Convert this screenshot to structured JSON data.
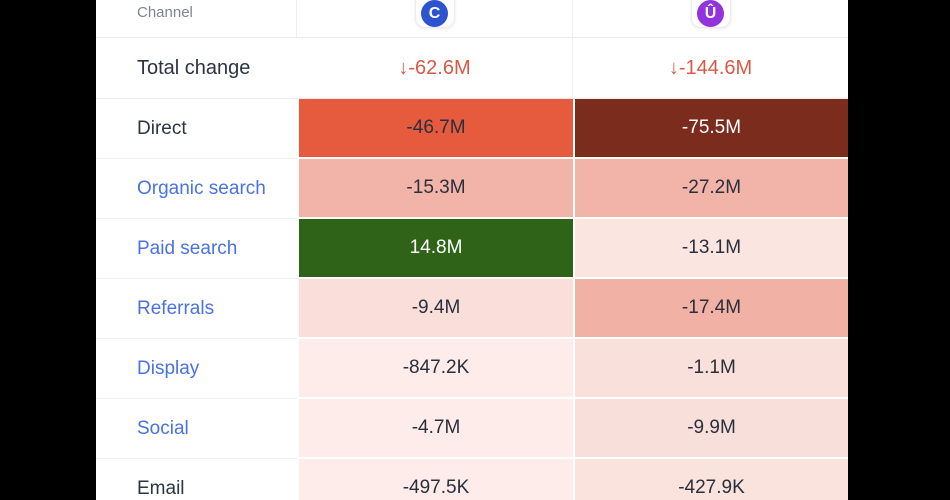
{
  "page": {
    "letterbox_color": "#000000",
    "table_background": "#ffffff"
  },
  "table": {
    "header": {
      "channel_label": "Channel",
      "brands": [
        {
          "icon": "brand-c-icon",
          "glyph": "C",
          "circle_color": "#2d53cf"
        },
        {
          "icon": "brand-u-icon",
          "glyph": "Û",
          "circle_color": "#9233dd"
        }
      ]
    },
    "total_row": {
      "label": "Total change",
      "text_color": "#d85a46",
      "values": [
        {
          "text": "↓-62.6M"
        },
        {
          "text": "↓-144.6M"
        }
      ]
    },
    "rows": [
      {
        "label": "Direct",
        "label_color": "#2d3442",
        "cells": [
          {
            "text": "-46.7M",
            "bg": "#e65b3e",
            "fg": "#2a2f3c"
          },
          {
            "text": "-75.5M",
            "bg": "#7b2c1d",
            "fg": "#ffffff"
          }
        ]
      },
      {
        "label": "Organic search",
        "label_color": "#4a72e2",
        "cells": [
          {
            "text": "-15.3M",
            "bg": "#f2b4a8",
            "fg": "#2a2f3c"
          },
          {
            "text": "-27.2M",
            "bg": "#f2b4a8",
            "fg": "#2a2f3c"
          }
        ]
      },
      {
        "label": "Paid search",
        "label_color": "#4a72e2",
        "cells": [
          {
            "text": "14.8M",
            "bg": "#2f6418",
            "fg": "#ffffff"
          },
          {
            "text": "-13.1M",
            "bg": "#fbe5e1",
            "fg": "#2a2f3c"
          }
        ]
      },
      {
        "label": "Referrals",
        "label_color": "#4a72e2",
        "cells": [
          {
            "text": "-9.4M",
            "bg": "#fadeda",
            "fg": "#2a2f3c"
          },
          {
            "text": "-17.4M",
            "bg": "#f2b1a5",
            "fg": "#2a2f3c"
          }
        ]
      },
      {
        "label": "Display",
        "label_color": "#4a72e2",
        "cells": [
          {
            "text": "-847.2K",
            "bg": "#fdece9",
            "fg": "#2a2f3c"
          },
          {
            "text": "-1.1M",
            "bg": "#f9e0db",
            "fg": "#2a2f3c"
          }
        ]
      },
      {
        "label": "Social",
        "label_color": "#4a72e2",
        "cells": [
          {
            "text": "-4.7M",
            "bg": "#fdece9",
            "fg": "#2a2f3c"
          },
          {
            "text": "-9.9M",
            "bg": "#f9dfda",
            "fg": "#2a2f3c"
          }
        ]
      },
      {
        "label": "Email",
        "label_color": "#2d3442",
        "cells": [
          {
            "text": "-497.5K",
            "bg": "#fdece9",
            "fg": "#2a2f3c"
          },
          {
            "text": "-427.9K",
            "bg": "#fae2dd",
            "fg": "#2a2f3c"
          }
        ]
      }
    ]
  },
  "chart_data": {
    "type": "table",
    "title": "Traffic change by channel (two sites compared)",
    "categories": [
      "Total change",
      "Direct",
      "Organic search",
      "Paid search",
      "Referrals",
      "Display",
      "Social",
      "Email"
    ],
    "series": [
      {
        "name": "brand-c",
        "labels": [
          "↓-62.6M",
          "-46.7M",
          "-15.3M",
          "14.8M",
          "-9.4M",
          "-847.2K",
          "-4.7M",
          "-497.5K"
        ],
        "values_millions": [
          -62.6,
          -46.7,
          -15.3,
          14.8,
          -9.4,
          -0.8472,
          -4.7,
          -0.4975
        ]
      },
      {
        "name": "brand-u",
        "labels": [
          "↓-144.6M",
          "-75.5M",
          "-27.2M",
          "-13.1M",
          "-17.4M",
          "-1.1M",
          "-9.9M",
          "-427.9K"
        ],
        "values_millions": [
          -144.6,
          -75.5,
          -27.2,
          -13.1,
          -17.4,
          -1.1,
          -9.9,
          -0.4279
        ]
      }
    ],
    "layout": "rows are channels, columns are the two compared sites; cell background encodes magnitude/sign (green = gain, red shades = loss)"
  }
}
